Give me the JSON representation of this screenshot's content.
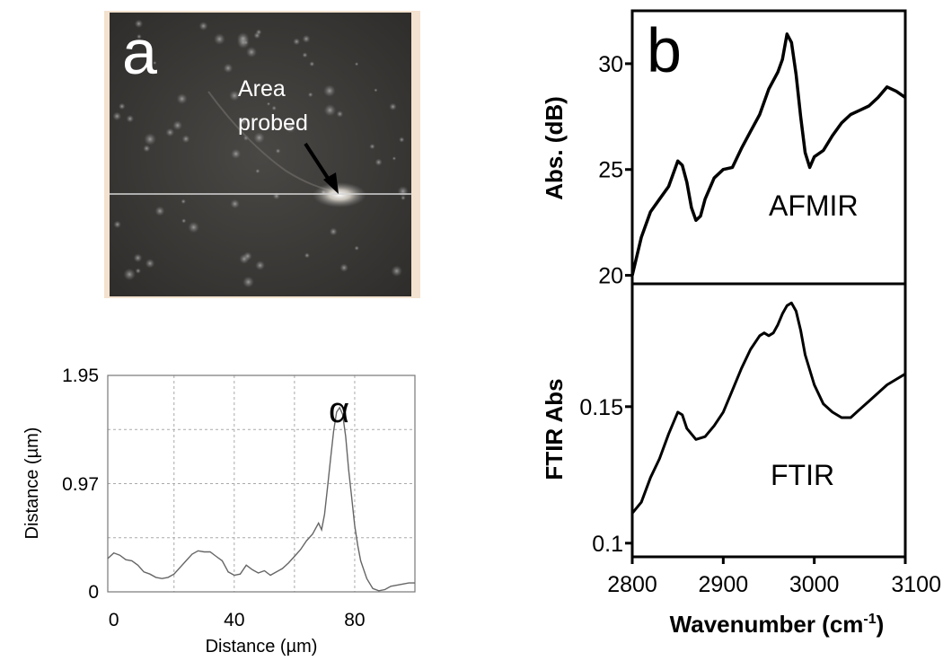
{
  "panels": {
    "a_label": "a",
    "b_label": "b"
  },
  "image_panel": {
    "annotation_line1": "Area",
    "annotation_line2": "probed"
  },
  "chart_data": [
    {
      "type": "line",
      "id": "profile",
      "xlabel": "Distance (µm)",
      "ylabel": "Distance (µm)",
      "xlim": [
        -2,
        100
      ],
      "ylim": [
        0,
        1.95
      ],
      "xticks": [
        0,
        40,
        80
      ],
      "yticks": [
        0,
        0.97,
        1.95
      ],
      "yticklabels": [
        "0",
        "0.97",
        "1.95"
      ],
      "grid": true,
      "peak_label": "α",
      "series": [
        {
          "x": [
            -2,
            0,
            2,
            4,
            6,
            8,
            10,
            12,
            14,
            16,
            18,
            20,
            22,
            24,
            26,
            28,
            30,
            32,
            34,
            36,
            38,
            40,
            42,
            44,
            46,
            48,
            50,
            52,
            54,
            56,
            58,
            60,
            62,
            64,
            66,
            68,
            69,
            70,
            71,
            72,
            73,
            74,
            75,
            76,
            77,
            78,
            79,
            80,
            81,
            82,
            84,
            86,
            88,
            90,
            92,
            94,
            96,
            98,
            100
          ],
          "y": [
            0.3,
            0.35,
            0.33,
            0.29,
            0.28,
            0.24,
            0.18,
            0.16,
            0.13,
            0.12,
            0.13,
            0.16,
            0.22,
            0.28,
            0.34,
            0.37,
            0.36,
            0.36,
            0.32,
            0.28,
            0.18,
            0.15,
            0.16,
            0.24,
            0.2,
            0.17,
            0.19,
            0.15,
            0.18,
            0.21,
            0.26,
            0.32,
            0.38,
            0.46,
            0.52,
            0.62,
            0.56,
            0.7,
            0.95,
            1.2,
            1.45,
            1.62,
            1.66,
            1.6,
            1.4,
            1.1,
            0.85,
            0.6,
            0.42,
            0.28,
            0.12,
            0.03,
            0.01,
            0.02,
            0.05,
            0.06,
            0.07,
            0.08,
            0.08
          ]
        }
      ]
    },
    {
      "type": "line",
      "id": "afmir",
      "ylabel": "Abs. (dB)",
      "xlim": [
        2800,
        3100
      ],
      "ylim": [
        19.6,
        32.5
      ],
      "yticks": [
        20,
        25,
        30
      ],
      "series_label": "AFMIR",
      "series": [
        {
          "x": [
            2800,
            2810,
            2820,
            2830,
            2840,
            2850,
            2855,
            2860,
            2865,
            2870,
            2875,
            2880,
            2890,
            2900,
            2910,
            2920,
            2930,
            2940,
            2950,
            2960,
            2965,
            2970,
            2975,
            2980,
            2985,
            2990,
            2995,
            3000,
            3010,
            3020,
            3030,
            3040,
            3050,
            3060,
            3070,
            3080,
            3090,
            3100
          ],
          "y": [
            20.0,
            21.8,
            23.0,
            23.6,
            24.2,
            25.4,
            25.2,
            24.4,
            23.2,
            22.6,
            22.8,
            23.6,
            24.6,
            25.0,
            25.1,
            26.0,
            26.8,
            27.6,
            28.8,
            29.6,
            30.2,
            31.4,
            31.0,
            29.5,
            27.5,
            25.8,
            25.1,
            25.6,
            25.9,
            26.6,
            27.2,
            27.6,
            27.8,
            28.0,
            28.4,
            28.9,
            28.7,
            28.4
          ]
        }
      ]
    },
    {
      "type": "line",
      "id": "ftir",
      "ylabel": "FTIR Abs",
      "xlabel": "Wavenumber (cm-1)",
      "xlim": [
        2800,
        3100
      ],
      "ylim": [
        0.095,
        0.195
      ],
      "xticks": [
        2800,
        2900,
        3000,
        3100
      ],
      "yticks": [
        0.1,
        0.15
      ],
      "yticklabels": [
        "0.1",
        "0.15"
      ],
      "series_label": "FTIR",
      "series": [
        {
          "x": [
            2800,
            2810,
            2820,
            2830,
            2840,
            2850,
            2855,
            2860,
            2870,
            2880,
            2890,
            2900,
            2910,
            2920,
            2930,
            2940,
            2945,
            2950,
            2955,
            2960,
            2965,
            2970,
            2975,
            2980,
            2985,
            2990,
            3000,
            3010,
            3020,
            3030,
            3040,
            3050,
            3060,
            3070,
            3080,
            3090,
            3100
          ],
          "y": [
            0.111,
            0.115,
            0.124,
            0.131,
            0.14,
            0.148,
            0.147,
            0.142,
            0.138,
            0.139,
            0.143,
            0.148,
            0.156,
            0.164,
            0.171,
            0.176,
            0.177,
            0.176,
            0.177,
            0.18,
            0.184,
            0.187,
            0.188,
            0.185,
            0.178,
            0.169,
            0.158,
            0.151,
            0.148,
            0.146,
            0.146,
            0.149,
            0.152,
            0.155,
            0.158,
            0.16,
            0.162
          ]
        }
      ]
    }
  ]
}
